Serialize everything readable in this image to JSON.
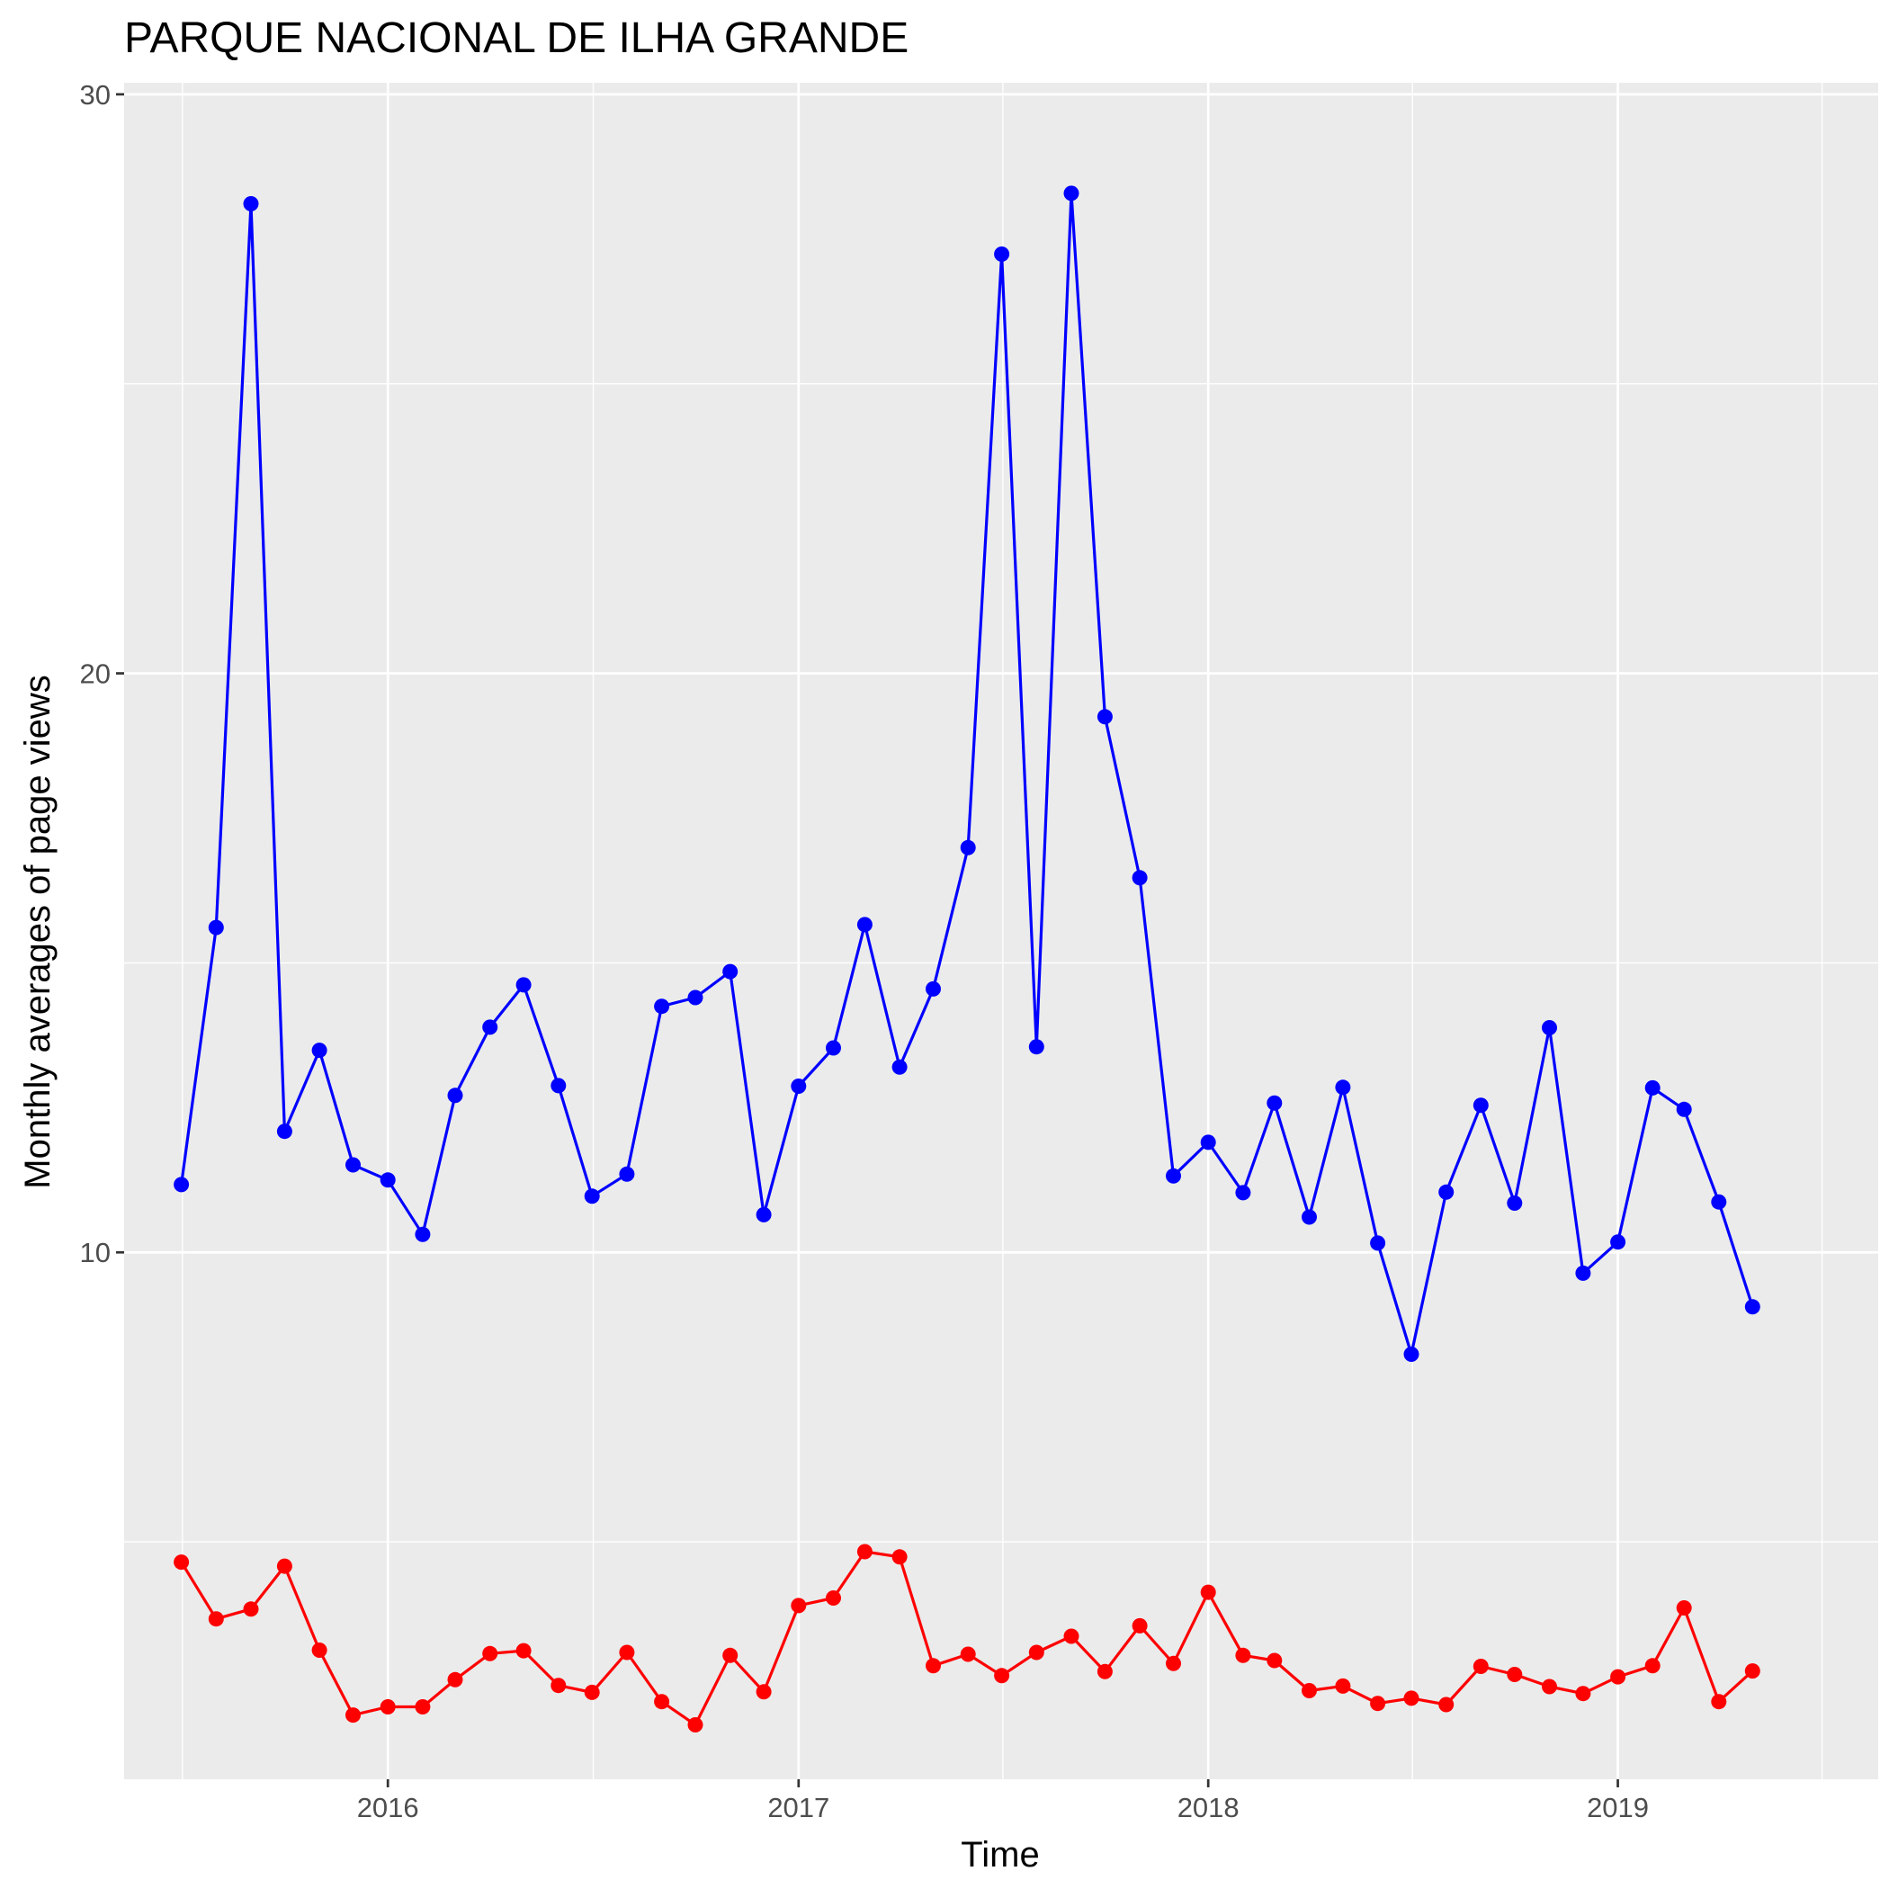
{
  "chart_data": {
    "type": "line",
    "title": "PARQUE NACIONAL DE ILHA GRANDE",
    "xlabel": "Time",
    "ylabel": "Monthly averages of page views",
    "x_ticks": [
      "2016",
      "2017",
      "2018",
      "2019"
    ],
    "y_ticks": [
      10,
      20,
      30
    ],
    "ylim": [
      0.9,
      30.2
    ],
    "xlim": [
      "2015-05-11",
      "2019-08-21"
    ],
    "grid": true,
    "legend": "none",
    "x": [
      "2015-07-01",
      "2015-08-01",
      "2015-09-01",
      "2015-10-01",
      "2015-11-01",
      "2015-12-01",
      "2016-01-01",
      "2016-02-01",
      "2016-03-01",
      "2016-04-01",
      "2016-05-01",
      "2016-06-01",
      "2016-07-01",
      "2016-08-01",
      "2016-09-01",
      "2016-10-01",
      "2016-11-01",
      "2016-12-01",
      "2017-01-01",
      "2017-02-01",
      "2017-03-01",
      "2017-04-01",
      "2017-05-01",
      "2017-06-01",
      "2017-07-01",
      "2017-08-01",
      "2017-09-01",
      "2017-10-01",
      "2017-11-01",
      "2017-12-01",
      "2018-01-01",
      "2018-02-01",
      "2018-03-01",
      "2018-04-01",
      "2018-05-01",
      "2018-06-01",
      "2018-07-01",
      "2018-08-01",
      "2018-09-01",
      "2018-10-01",
      "2018-11-01",
      "2018-12-01",
      "2019-01-01",
      "2019-02-01",
      "2019-03-01",
      "2019-04-01",
      "2019-05-01"
    ],
    "series": [
      {
        "color": "#0000ff",
        "values": [
          11.17,
          15.61,
          28.11,
          12.09,
          13.49,
          11.51,
          11.25,
          10.31,
          12.71,
          13.89,
          14.62,
          12.88,
          10.97,
          11.35,
          14.25,
          14.4,
          14.85,
          10.65,
          12.87,
          13.53,
          15.66,
          13.2,
          14.55,
          16.99,
          27.24,
          13.55,
          28.29,
          19.25,
          16.47,
          11.32,
          11.9,
          11.03,
          12.58,
          10.61,
          12.85,
          10.16,
          8.24,
          11.04,
          12.54,
          10.85,
          13.88,
          9.64,
          10.18,
          12.84,
          12.47,
          10.87,
          9.06
        ]
      },
      {
        "color": "#ff0000",
        "values": [
          4.65,
          3.67,
          3.84,
          4.58,
          3.13,
          2.01,
          2.15,
          2.15,
          2.62,
          3.07,
          3.12,
          2.52,
          2.4,
          3.09,
          2.24,
          1.84,
          3.04,
          2.41,
          3.9,
          4.03,
          4.83,
          4.74,
          2.86,
          3.06,
          2.69,
          3.09,
          3.37,
          2.76,
          3.55,
          2.9,
          4.13,
          3.04,
          2.95,
          2.43,
          2.51,
          2.21,
          2.3,
          2.19,
          2.85,
          2.71,
          2.5,
          2.38,
          2.67,
          2.86,
          3.86,
          2.24,
          2.77
        ]
      }
    ]
  }
}
